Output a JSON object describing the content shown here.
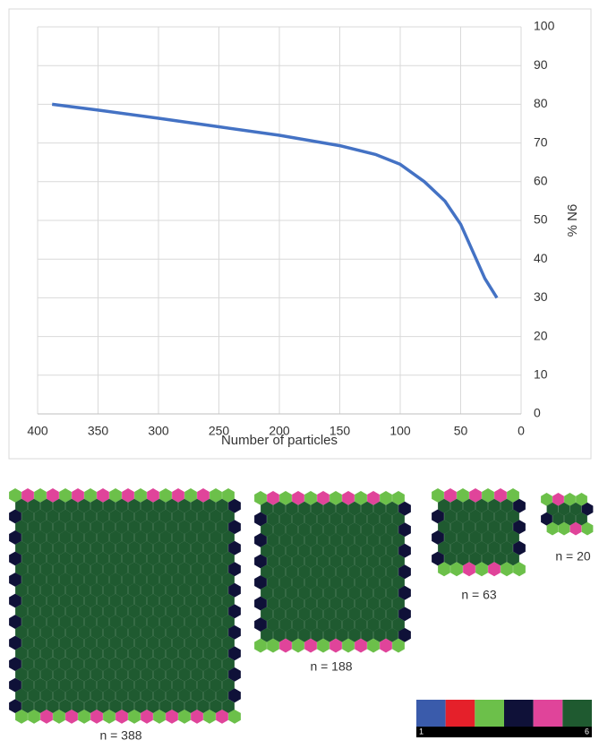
{
  "chart_data": {
    "type": "line",
    "x_label": "Number of particles",
    "y_label": "% N6",
    "x": [
      388,
      350,
      300,
      250,
      200,
      150,
      120,
      100,
      80,
      63,
      50,
      40,
      30,
      20
    ],
    "values": [
      80,
      78.5,
      76.4,
      74.2,
      72,
      69.3,
      67,
      64.5,
      60,
      55,
      49,
      42,
      35,
      30
    ],
    "color": "#4472c4",
    "xlim": [
      400,
      0
    ],
    "xticks": [
      400,
      350,
      300,
      250,
      200,
      150,
      100,
      50,
      0
    ],
    "ylim": [
      0,
      100
    ],
    "yticks": [
      0,
      10,
      20,
      30,
      40,
      50,
      60,
      70,
      80,
      90,
      100
    ],
    "y_axis_side": "right",
    "grid": true
  },
  "panels": [
    {
      "label": "n = 388"
    },
    {
      "label": "n = 188"
    },
    {
      "label": "n = 63"
    },
    {
      "label": "n = 20"
    }
  ],
  "colorbar": {
    "colors": [
      "#3a5bab",
      "#e5202a",
      "#6cc04a",
      "#0f1138",
      "#e0449a",
      "#1f5a30"
    ],
    "labels": [
      "1",
      "6"
    ]
  }
}
